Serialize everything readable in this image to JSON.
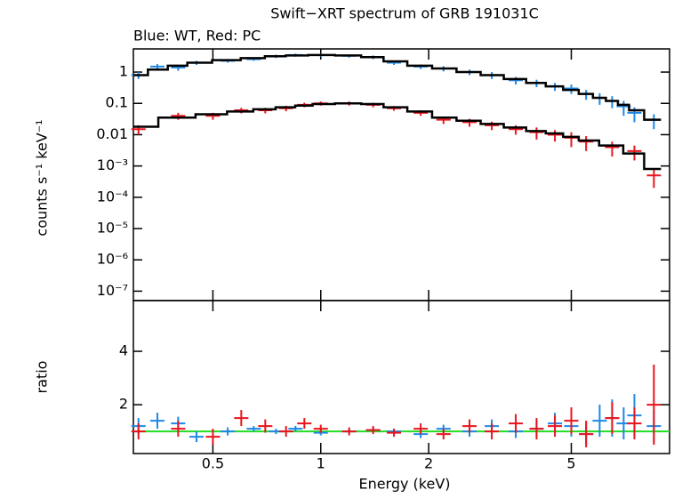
{
  "chart_data": [
    {
      "type": "scatter",
      "title": "Swift−XRT spectrum of GRB 191031C",
      "subtitle": "Blue: WT, Red: PC",
      "ylabel": "counts s⁻¹ keV⁻¹",
      "xscale": "log",
      "yscale": "log",
      "xlim": [
        0.3,
        9.4
      ],
      "xticks": [
        0.5,
        1,
        2,
        5
      ],
      "ylim": [
        5e-08,
        5.5
      ],
      "yticks": [
        1,
        0.1,
        0.01,
        {
          "value": 0.001,
          "label": "10⁻³"
        },
        {
          "value": 0.0001,
          "label": "10⁻⁴"
        },
        {
          "value": 1e-05,
          "label": "10⁻⁵"
        },
        {
          "value": 1e-06,
          "label": "10⁻⁶"
        },
        {
          "value": 1e-07,
          "label": "10⁻⁷"
        }
      ],
      "model_color": "#000000",
      "series": [
        {
          "color": "#1e88e5",
          "x": [
            0.31,
            0.35,
            0.4,
            0.45,
            0.55,
            0.65,
            0.75,
            0.85,
            1.0,
            1.2,
            1.4,
            1.6,
            1.9,
            2.2,
            2.6,
            3.0,
            3.5,
            4.0,
            4.5,
            5.0,
            5.5,
            6.0,
            6.5,
            7.0,
            7.5,
            8.5
          ],
          "values": [
            0.8,
            1.5,
            1.4,
            2,
            2.3,
            2.6,
            3.2,
            3.5,
            3.5,
            3.3,
            3.0,
            2.0,
            1.5,
            1.3,
            1.0,
            0.8,
            0.55,
            0.45,
            0.35,
            0.3,
            0.2,
            0.15,
            0.12,
            0.08,
            0.05,
            0.03
          ],
          "errors": [
            0.2,
            0.3,
            0.3,
            0.3,
            0.3,
            0.3,
            0.4,
            0.4,
            0.4,
            0.4,
            0.4,
            0.3,
            0.25,
            0.25,
            0.2,
            0.2,
            0.15,
            0.12,
            0.1,
            0.1,
            0.07,
            0.06,
            0.05,
            0.04,
            0.025,
            0.015
          ],
          "model": [
            0.8,
            1.2,
            1.6,
            2.0,
            2.4,
            2.8,
            3.2,
            3.4,
            3.5,
            3.4,
            3.0,
            2.2,
            1.6,
            1.3,
            1.0,
            0.8,
            0.6,
            0.45,
            0.35,
            0.27,
            0.2,
            0.15,
            0.12,
            0.09,
            0.06,
            0.03
          ]
        },
        {
          "color": "#e8141c",
          "x": [
            0.31,
            0.4,
            0.5,
            0.6,
            0.7,
            0.8,
            0.9,
            1.0,
            1.2,
            1.4,
            1.6,
            1.9,
            2.2,
            2.6,
            3.0,
            3.5,
            4.0,
            4.5,
            5.0,
            5.5,
            6.5,
            7.5,
            8.5
          ],
          "values": [
            0.015,
            0.04,
            0.04,
            0.06,
            0.06,
            0.07,
            0.09,
            0.1,
            0.1,
            0.09,
            0.07,
            0.05,
            0.03,
            0.025,
            0.02,
            0.015,
            0.012,
            0.01,
            0.008,
            0.006,
            0.004,
            0.003,
            0.0005
          ],
          "errors": [
            0.005,
            0.01,
            0.01,
            0.012,
            0.012,
            0.014,
            0.015,
            0.015,
            0.015,
            0.015,
            0.012,
            0.01,
            0.008,
            0.007,
            0.006,
            0.005,
            0.005,
            0.004,
            0.004,
            0.003,
            0.002,
            0.0015,
            0.0003
          ],
          "model": [
            0.018,
            0.035,
            0.045,
            0.055,
            0.065,
            0.075,
            0.085,
            0.095,
            0.1,
            0.095,
            0.075,
            0.055,
            0.035,
            0.028,
            0.022,
            0.017,
            0.013,
            0.011,
            0.0085,
            0.0065,
            0.0045,
            0.0025,
            0.0008
          ]
        }
      ]
    },
    {
      "type": "scatter",
      "ylabel": "ratio",
      "xlabel": "Energy (keV)",
      "xscale": "log",
      "yscale": "linear",
      "xlim": [
        0.3,
        9.4
      ],
      "xticks": [
        0.5,
        1,
        2,
        5
      ],
      "ylim": [
        0.17,
        5.9
      ],
      "yticks": [
        2,
        4
      ],
      "reference_line": {
        "value": 1,
        "color": "#22dd22"
      },
      "series": [
        {
          "color": "#1e88e5",
          "x": [
            0.31,
            0.35,
            0.4,
            0.45,
            0.55,
            0.65,
            0.75,
            0.85,
            1.0,
            1.2,
            1.4,
            1.6,
            1.9,
            2.2,
            2.6,
            3.0,
            3.5,
            4.0,
            4.5,
            5.0,
            5.5,
            6.0,
            6.5,
            7.0,
            7.5,
            8.5
          ],
          "values": [
            1.2,
            1.4,
            1.3,
            0.8,
            1.0,
            1.1,
            1.0,
            1.1,
            0.95,
            1.0,
            1.05,
            1.0,
            0.9,
            1.1,
            1.0,
            1.2,
            1.0,
            1.1,
            1.3,
            1.2,
            0.9,
            1.4,
            1.5,
            1.3,
            1.6,
            1.2
          ],
          "errors": [
            0.3,
            0.3,
            0.25,
            0.2,
            0.15,
            0.1,
            0.1,
            0.1,
            0.1,
            0.1,
            0.1,
            0.1,
            0.15,
            0.15,
            0.2,
            0.25,
            0.25,
            0.3,
            0.4,
            0.4,
            0.4,
            0.6,
            0.7,
            0.6,
            0.8,
            0.6
          ]
        },
        {
          "color": "#e8141c",
          "x": [
            0.31,
            0.4,
            0.5,
            0.6,
            0.7,
            0.8,
            0.9,
            1.0,
            1.2,
            1.4,
            1.6,
            1.9,
            2.2,
            2.6,
            3.0,
            3.5,
            4.0,
            4.5,
            5.0,
            5.5,
            6.5,
            7.5,
            8.5
          ],
          "values": [
            1.0,
            1.1,
            0.8,
            1.5,
            1.2,
            1.0,
            1.3,
            1.1,
            1.0,
            1.05,
            0.95,
            1.1,
            0.9,
            1.2,
            1.0,
            1.3,
            1.1,
            1.2,
            1.4,
            0.9,
            1.5,
            1.3,
            2.0
          ],
          "errors": [
            0.3,
            0.3,
            0.3,
            0.3,
            0.25,
            0.2,
            0.2,
            0.15,
            0.15,
            0.15,
            0.15,
            0.2,
            0.2,
            0.25,
            0.3,
            0.35,
            0.4,
            0.4,
            0.5,
            0.5,
            0.6,
            0.6,
            1.5
          ]
        }
      ]
    }
  ]
}
